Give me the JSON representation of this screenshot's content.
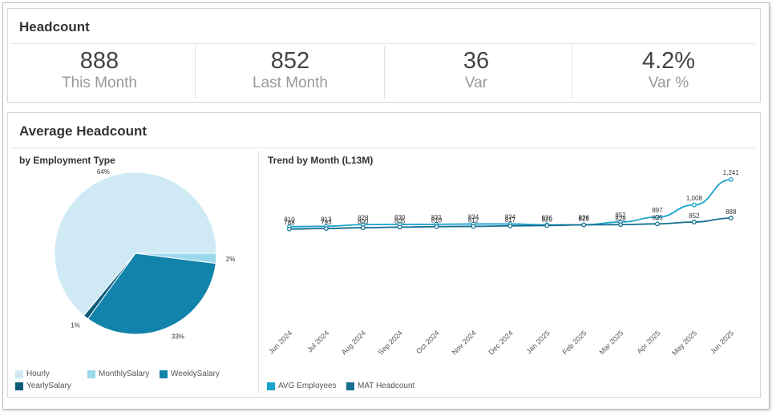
{
  "headcount": {
    "title": "Headcount",
    "kpis": [
      {
        "value": "888",
        "label": "This Month"
      },
      {
        "value": "852",
        "label": "Last Month"
      },
      {
        "value": "36",
        "label": "Var"
      },
      {
        "value": "4.2%",
        "label": "Var %"
      }
    ]
  },
  "average": {
    "title": "Average Headcount",
    "pie_title": "by Employment Type",
    "line_title": "Trend by Month (L13M)"
  },
  "colors": {
    "hourly": "#cfeaf5",
    "monthly": "#9dd9ec",
    "weekly": "#1283ab",
    "yearly": "#0b5a78",
    "avg": "#1ba3cc",
    "mat": "#146f91"
  },
  "chart_data": [
    {
      "type": "pie",
      "title": "by Employment Type",
      "categories": [
        "Hourly",
        "MonthlySalary",
        "WeeklySalary",
        "YearlySalary"
      ],
      "values": [
        64,
        2,
        33,
        1
      ],
      "labels": [
        "64%",
        "2%",
        "33%",
        "1%"
      ],
      "legend": "bottom"
    },
    {
      "type": "line",
      "title": "Trend by Month (L13M)",
      "categories": [
        "Jun 2024",
        "Jul 2024",
        "Aug 2024",
        "Sep 2024",
        "Oct 2024",
        "Nov 2024",
        "Dec 2024",
        "Jan 2025",
        "Feb 2025",
        "Mar 2025",
        "Apr 2025",
        "May 2025",
        "Jun 2025"
      ],
      "series": [
        {
          "name": "AVG Employees",
          "values": [
            810,
            813,
            828,
            830,
            831,
            834,
            834,
            826,
            826,
            852,
            897,
            1008,
            1241
          ],
          "labels": [
            "810",
            "813",
            "828",
            "830",
            "831",
            "834",
            "834",
            "826",
            "826",
            "852",
            "897",
            "1,008",
            "1,241"
          ]
        },
        {
          "name": "MAT Headcount",
          "values": [
            788,
            793,
            800,
            805,
            810,
            812,
            817,
            820,
            826,
            828,
            835,
            852,
            888
          ],
          "labels": [
            "788",
            "793",
            "800",
            "805",
            "810",
            "812",
            "817",
            "820",
            "826",
            "828",
            "835",
            "852",
            "888"
          ]
        }
      ],
      "ylim": [
        0,
        1300
      ],
      "legend": "bottom-left"
    }
  ]
}
